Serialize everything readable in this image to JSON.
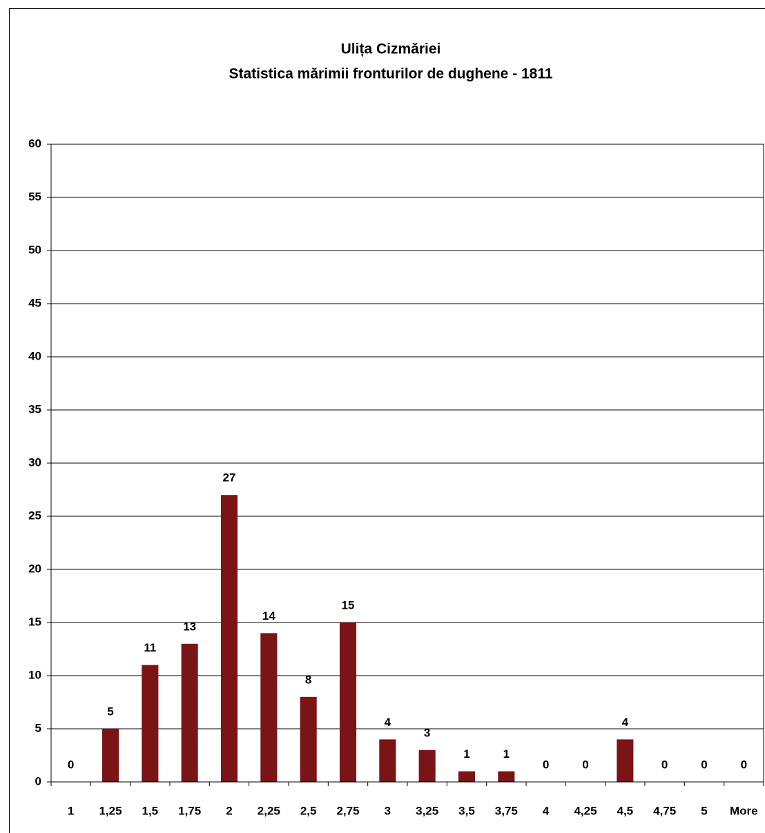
{
  "chart_data": {
    "type": "bar",
    "title": "Ulița Cizmăriei",
    "subtitle": "Statistica mărimii fronturilor de dughene - 1811",
    "categories": [
      "1",
      "1,25",
      "1,5",
      "1,75",
      "2",
      "2,25",
      "2,5",
      "2,75",
      "3",
      "3,25",
      "3,5",
      "3,75",
      "4",
      "4,25",
      "4,5",
      "4,75",
      "5",
      "More"
    ],
    "values": [
      0,
      5,
      11,
      13,
      27,
      14,
      8,
      15,
      4,
      3,
      1,
      1,
      0,
      0,
      4,
      0,
      0,
      0
    ],
    "color": "#7b1416",
    "ylim": [
      0,
      60
    ],
    "yticks": [
      0,
      5,
      10,
      15,
      20,
      25,
      30,
      35,
      40,
      45,
      50,
      55,
      60
    ],
    "grid": true
  }
}
